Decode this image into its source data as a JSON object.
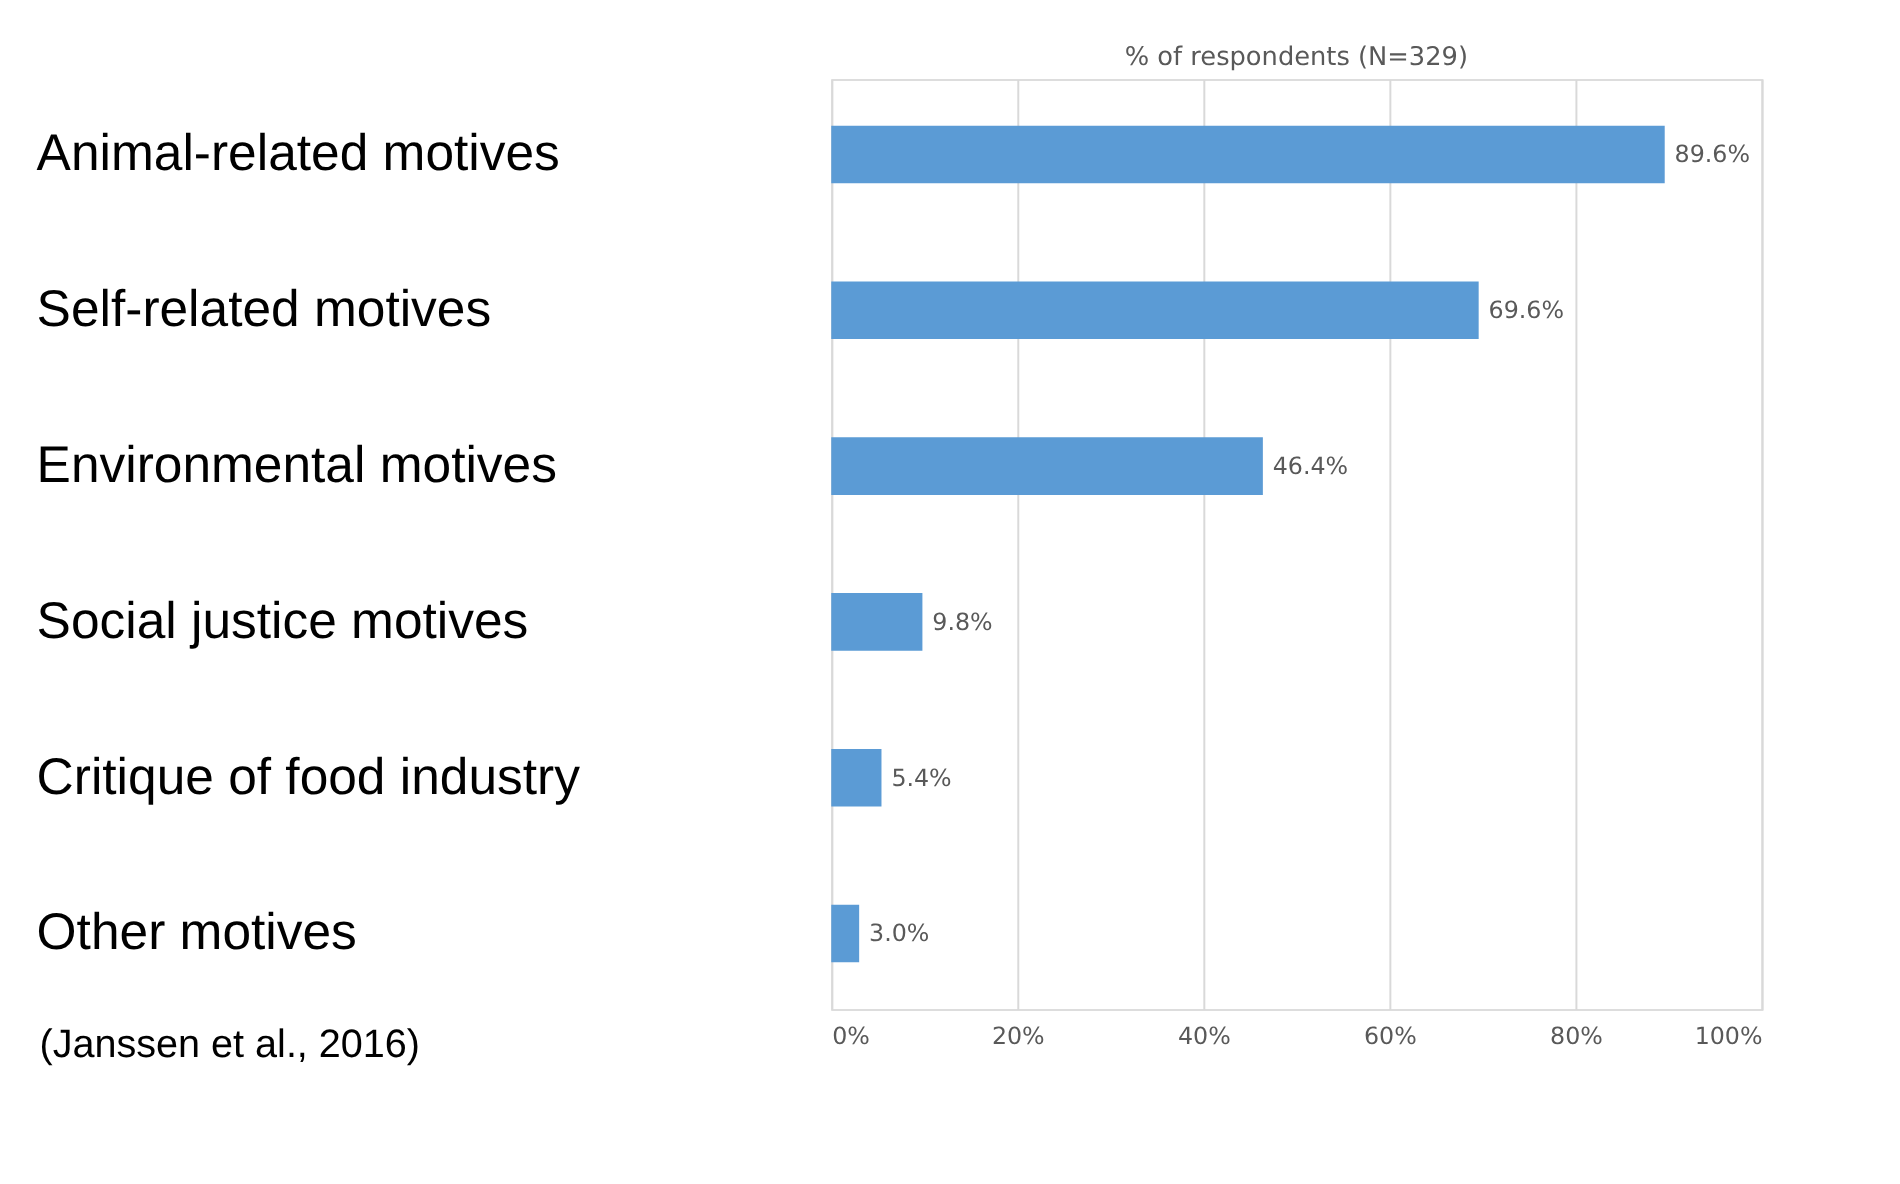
{
  "chart_data": {
    "type": "bar",
    "orientation": "horizontal",
    "title": "% of respondents (N=329)",
    "categories": [
      "Animal-related motives",
      "Self-related motives",
      "Environmental motives",
      "Social justice motives",
      "Critique of food industry",
      "Other motives"
    ],
    "values": [
      89.6,
      69.6,
      46.4,
      9.8,
      5.4,
      3.0
    ],
    "value_labels": [
      "89.6%",
      "69.6%",
      "46.4%",
      "9.8%",
      "5.4%",
      "3.0%"
    ],
    "color": "#5b9bd5",
    "xlim": [
      0,
      100
    ],
    "xticks": [
      {
        "value": 0,
        "label": "0%"
      },
      {
        "value": 20,
        "label": "20%"
      },
      {
        "value": 40,
        "label": "40%"
      },
      {
        "value": 60,
        "label": "60%"
      },
      {
        "value": 80,
        "label": "80%"
      },
      {
        "value": 100,
        "label": "100%"
      }
    ],
    "grid": "x",
    "annotations": [
      "(Janssen et al., 2016)"
    ]
  }
}
